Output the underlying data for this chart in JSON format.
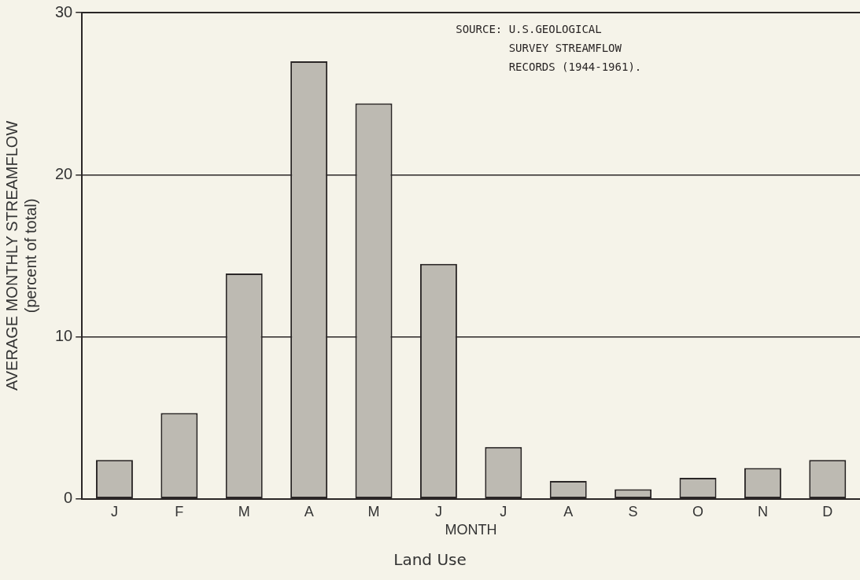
{
  "chart_data": {
    "type": "bar",
    "categories": [
      "J",
      "F",
      "M",
      "A",
      "M",
      "J",
      "J",
      "A",
      "S",
      "O",
      "N",
      "D"
    ],
    "values": [
      2.4,
      5.3,
      13.9,
      27.0,
      24.4,
      14.5,
      3.2,
      1.1,
      0.6,
      1.3,
      1.9,
      2.4
    ],
    "color": "#bdbab2",
    "xlabel": "MONTH",
    "ylabel": "AVERAGE MONTHLY STREAMFLOW\n(percent of total)",
    "ylim": [
      0,
      30
    ],
    "yticks": [
      0,
      10,
      20,
      30
    ],
    "grid": "y",
    "legend": false,
    "annotations": [
      "SOURCE: U.S.GEOLOGICAL\nSURVEY STREAMFLOW\nRECORDS (1944-1961).",
      "Land Use"
    ]
  }
}
